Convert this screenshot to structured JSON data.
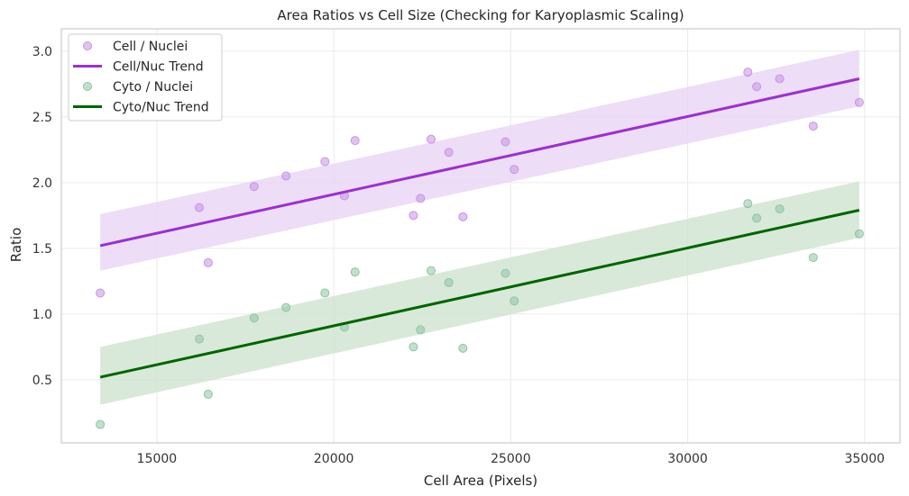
{
  "chart_data": {
    "type": "scatter",
    "title": "Area Ratios vs Cell Size (Checking for Karyoplasmic Scaling)",
    "xlabel": "Cell Area (Pixels)",
    "ylabel": "Ratio",
    "xlim": [
      12300,
      36000
    ],
    "ylim": [
      0.02,
      3.17
    ],
    "xticks": [
      15000,
      20000,
      25000,
      30000,
      35000
    ],
    "xtick_labels": [
      "15000",
      "20000",
      "25000",
      "30000",
      "35000"
    ],
    "yticks": [
      0.5,
      1.0,
      1.5,
      2.0,
      2.5,
      3.0
    ],
    "ytick_labels": [
      "0.5",
      "1.0",
      "1.5",
      "2.0",
      "2.5",
      "3.0"
    ],
    "grid": true,
    "legend_position": "top-left",
    "x": [
      13400,
      16200,
      16450,
      17750,
      18650,
      19750,
      20300,
      20600,
      22250,
      22450,
      22750,
      23250,
      23650,
      24850,
      25100,
      31700,
      31950,
      32600,
      33550,
      34850
    ],
    "series": [
      {
        "name": "Cell / Nuclei",
        "kind": "scatter",
        "color": "#c694e3",
        "values": [
          1.16,
          1.81,
          1.39,
          1.97,
          2.05,
          2.16,
          1.9,
          2.32,
          1.75,
          1.88,
          2.33,
          2.23,
          1.74,
          2.31,
          2.1,
          2.84,
          2.73,
          2.79,
          2.43,
          2.61
        ]
      },
      {
        "name": "Cell/Nuc Trend",
        "kind": "line",
        "color": "#9932cc",
        "band_color": "#e8d5f5",
        "x": [
          13400,
          34850
        ],
        "values": [
          1.52,
          2.79
        ],
        "band_lower": [
          1.33,
          2.58
        ],
        "band_upper": [
          1.76,
          3.01
        ]
      },
      {
        "name": "Cyto / Nuclei",
        "kind": "scatter",
        "color": "#8fc4a4",
        "values": [
          0.16,
          0.81,
          0.39,
          0.97,
          1.05,
          1.16,
          0.9,
          1.32,
          0.75,
          0.88,
          1.33,
          1.24,
          0.74,
          1.31,
          1.1,
          1.84,
          1.73,
          1.8,
          1.43,
          1.61
        ]
      },
      {
        "name": "Cyto/Nuc Trend",
        "kind": "line",
        "color": "#006400",
        "band_color": "#cfe3cf",
        "x": [
          13400,
          34850
        ],
        "values": [
          0.52,
          1.79
        ],
        "band_lower": [
          0.31,
          1.58
        ],
        "band_upper": [
          0.75,
          2.01
        ]
      }
    ]
  }
}
